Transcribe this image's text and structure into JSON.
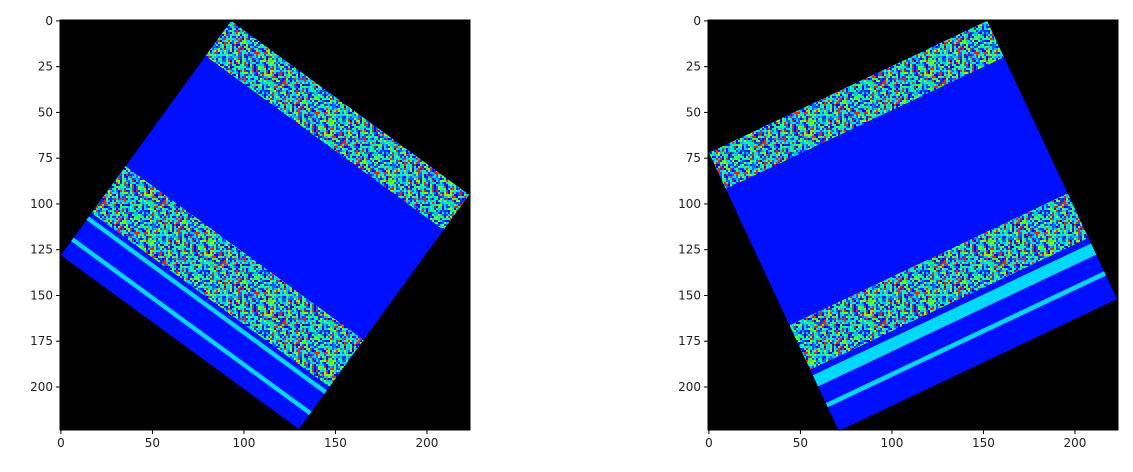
{
  "chart_data": [
    {
      "type": "image",
      "xlim": [
        -0.5,
        223.5
      ],
      "ylim": [
        223.5,
        -0.5
      ],
      "xticks": [
        0,
        50,
        100,
        150,
        200
      ],
      "yticks": [
        0,
        25,
        50,
        75,
        100,
        125,
        150,
        175,
        200
      ]
    },
    {
      "type": "image",
      "xlim": [
        -0.5,
        223.5
      ],
      "ylim": [
        223.5,
        -0.5
      ],
      "xticks": [
        0,
        50,
        100,
        150,
        200
      ],
      "yticks": [
        0,
        25,
        50,
        75,
        100,
        125,
        150,
        175,
        200
      ]
    }
  ]
}
